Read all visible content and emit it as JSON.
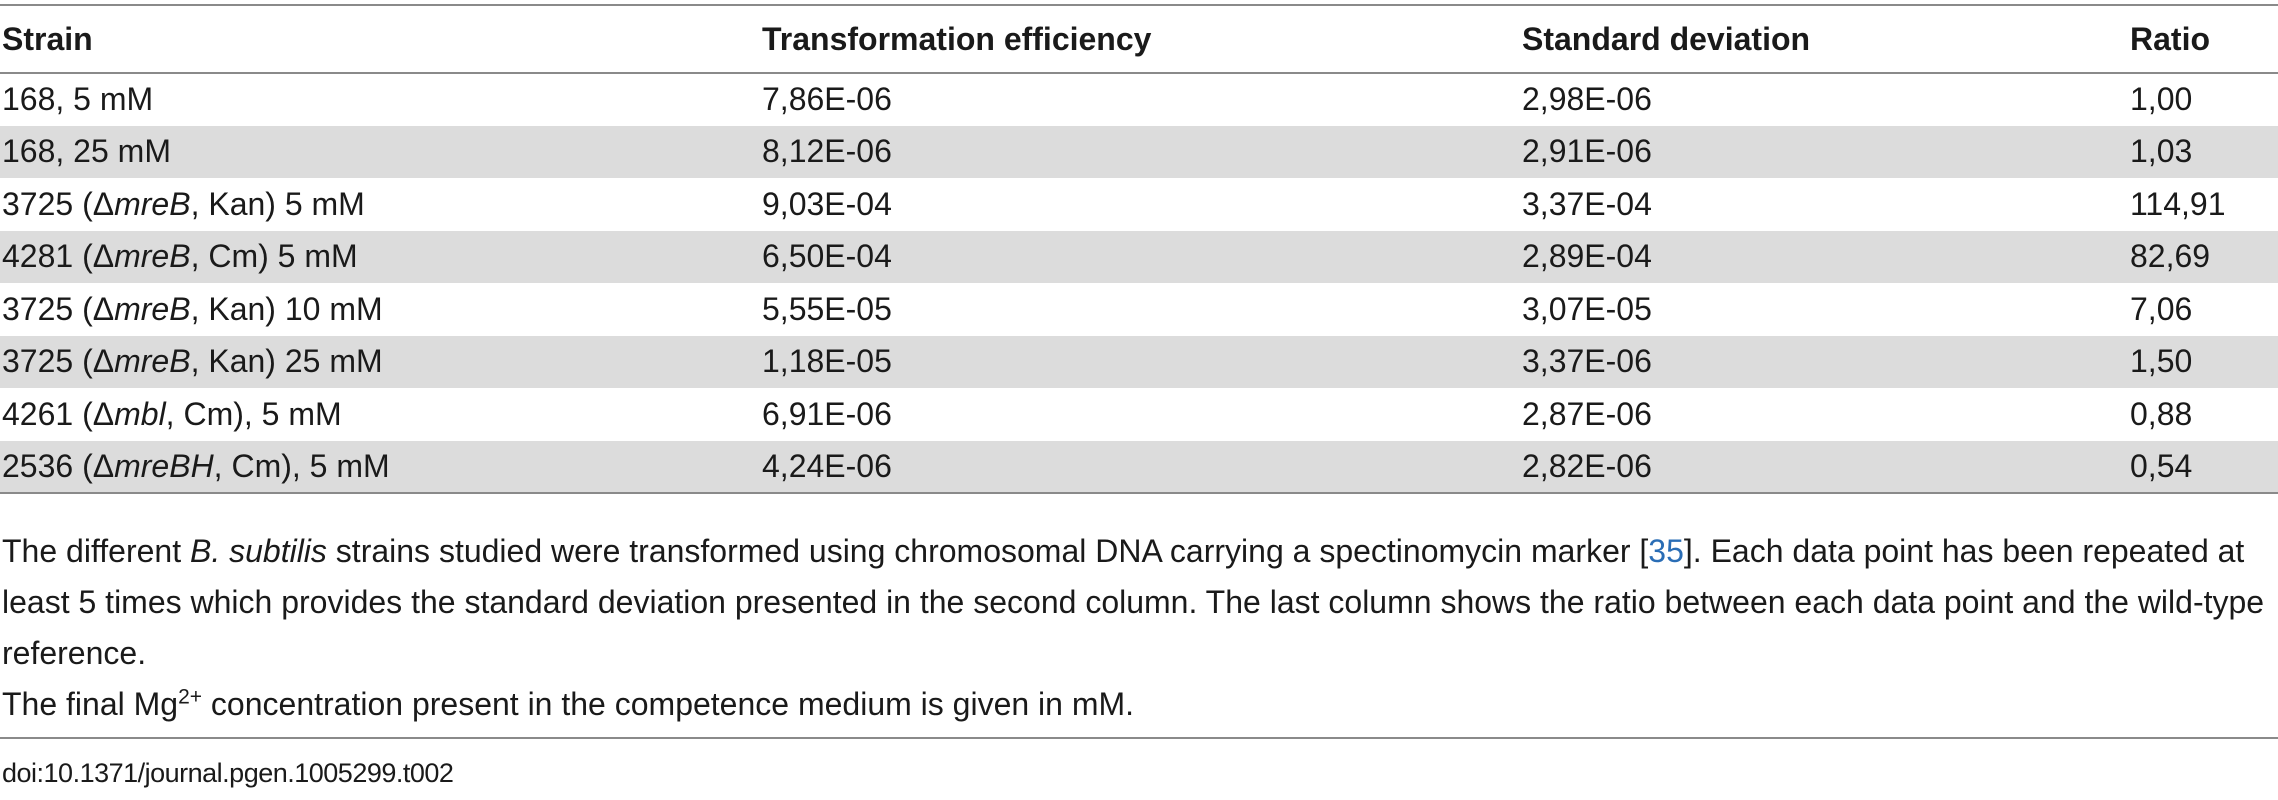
{
  "table": {
    "headers": [
      "Strain",
      "Transformation efficiency",
      "Standard deviation",
      "Ratio"
    ],
    "rows": [
      {
        "strain_pre": "168, 5 mM",
        "strain_gene": "",
        "strain_post": "",
        "efficiency": "7,86E-06",
        "sd": "2,98E-06",
        "ratio": "1,00"
      },
      {
        "strain_pre": "168, 25 mM",
        "strain_gene": "",
        "strain_post": "",
        "efficiency": "8,12E-06",
        "sd": "2,91E-06",
        "ratio": "1,03"
      },
      {
        "strain_pre": "3725 (Δ",
        "strain_gene": "mreB",
        "strain_post": ", Kan) 5 mM",
        "efficiency": "9,03E-04",
        "sd": "3,37E-04",
        "ratio": "114,91"
      },
      {
        "strain_pre": "4281 (Δ",
        "strain_gene": "mreB",
        "strain_post": ", Cm) 5 mM",
        "efficiency": "6,50E-04",
        "sd": "2,89E-04",
        "ratio": "82,69"
      },
      {
        "strain_pre": "3725 (Δ",
        "strain_gene": "mreB",
        "strain_post": ", Kan) 10 mM",
        "efficiency": "5,55E-05",
        "sd": "3,07E-05",
        "ratio": "7,06"
      },
      {
        "strain_pre": "3725 (Δ",
        "strain_gene": "mreB",
        "strain_post": ", Kan) 25 mM",
        "efficiency": "1,18E-05",
        "sd": "3,37E-06",
        "ratio": "1,50"
      },
      {
        "strain_pre": "4261 (Δ",
        "strain_gene": "mbl",
        "strain_post": ", Cm), 5 mM",
        "efficiency": "6,91E-06",
        "sd": "2,87E-06",
        "ratio": "0,88"
      },
      {
        "strain_pre": "2536 (Δ",
        "strain_gene": "mreBH",
        "strain_post": ", Cm), 5 mM",
        "efficiency": "4,24E-06",
        "sd": "2,82E-06",
        "ratio": "0,54"
      }
    ]
  },
  "caption": {
    "p1_a": "The different ",
    "p1_species": "B. subtilis",
    "p1_b": " strains studied were transformed using chromosomal DNA carrying a spectinomycin marker [",
    "p1_ref": "35",
    "p1_c": "]. Each data point has been repeated at least 5 times which provides the standard deviation presented in the second column. The last column shows the ratio between each data point and the wild-type reference.",
    "p2_a": "The final Mg",
    "p2_sup": "2+",
    "p2_b": " concentration present in the competence medium is given in mM."
  },
  "doi": "doi:10.1371/journal.pgen.1005299.t002"
}
